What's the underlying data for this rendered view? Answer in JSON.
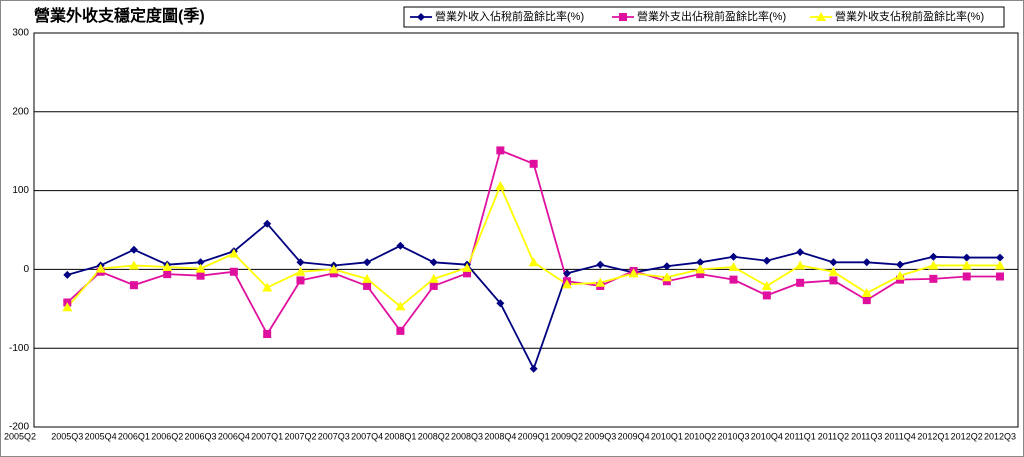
{
  "chart_data": {
    "type": "line",
    "title": "營業外收支穩定度圖(季)",
    "categories": [
      "2005Q2",
      "2005Q3",
      "2005Q4",
      "2006Q1",
      "2006Q2",
      "2006Q3",
      "2006Q4",
      "2007Q1",
      "2007Q2",
      "2007Q3",
      "2007Q4",
      "2008Q1",
      "2008Q2",
      "2008Q3",
      "2008Q4",
      "2009Q1",
      "2009Q2",
      "2009Q3",
      "2009Q4",
      "2010Q1",
      "2010Q2",
      "2010Q3",
      "2010Q4",
      "2011Q1",
      "2011Q2",
      "2011Q3",
      "2011Q4",
      "2012Q1",
      "2012Q2",
      "2012Q3"
    ],
    "series": [
      {
        "name": "營業外收入佔稅前盈餘比率(%)",
        "color": "#000080",
        "marker": "diamond",
        "values": [
          null,
          -7,
          5,
          25,
          6,
          9,
          23,
          58,
          9,
          5,
          9,
          30,
          9,
          6,
          -43,
          -126,
          -5,
          6,
          -4,
          4,
          9,
          16,
          11,
          22,
          9,
          9,
          6,
          16,
          15,
          15
        ]
      },
      {
        "name": "營業外支出佔稅前盈餘比率(%)",
        "color": "#e0109f",
        "marker": "square",
        "values": [
          null,
          -42,
          -3,
          -20,
          -6,
          -8,
          -3,
          -82,
          -14,
          -5,
          -21,
          -78,
          -21,
          -5,
          151,
          134,
          -15,
          -21,
          -2,
          -15,
          -6,
          -13,
          -33,
          -17,
          -14,
          -39,
          -13,
          -12,
          -9,
          -9
        ]
      },
      {
        "name": "營業外收支佔稅前盈餘比率(%)",
        "color": "#ffff00",
        "marker": "triangle",
        "values": [
          null,
          -48,
          1,
          5,
          3,
          1,
          20,
          -23,
          -3,
          0,
          -12,
          -47,
          -12,
          2,
          106,
          9,
          -19,
          -17,
          -5,
          -10,
          0,
          3,
          -21,
          5,
          -3,
          -30,
          -8,
          5,
          5,
          5
        ]
      }
    ],
    "ylim": [
      -200,
      300
    ],
    "yticks": [
      300,
      200,
      100,
      0,
      -100,
      -200
    ],
    "grid": true,
    "legend": "top-right"
  }
}
